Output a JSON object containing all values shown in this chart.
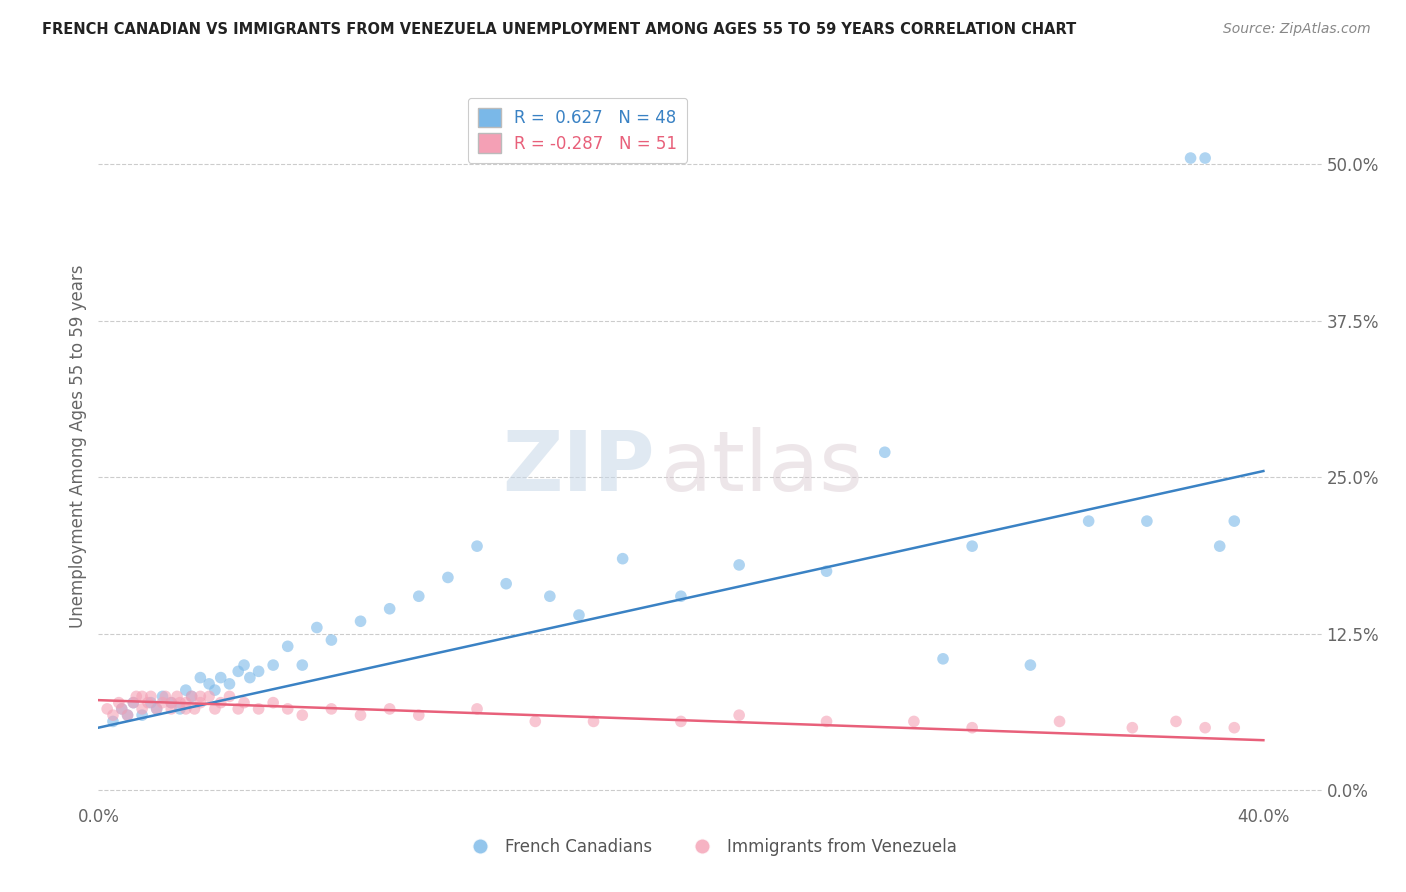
{
  "title": "FRENCH CANADIAN VS IMMIGRANTS FROM VENEZUELA UNEMPLOYMENT AMONG AGES 55 TO 59 YEARS CORRELATION CHART",
  "source": "Source: ZipAtlas.com",
  "ylabel": "Unemployment Among Ages 55 to 59 years",
  "xlabel": "",
  "background_color": "#ffffff",
  "watermark_zip": "ZIP",
  "watermark_atlas": "atlas",
  "blue_R": 0.627,
  "blue_N": 48,
  "pink_R": -0.287,
  "pink_N": 51,
  "blue_color": "#7ab8e8",
  "pink_color": "#f4a0b5",
  "blue_line_color": "#3a82c4",
  "pink_line_color": "#e8607a",
  "xlim": [
    0.0,
    0.42
  ],
  "ylim": [
    -0.01,
    0.56
  ],
  "yticks": [
    0.0,
    0.125,
    0.25,
    0.375,
    0.5
  ],
  "ytick_labels": [
    "0.0%",
    "12.5%",
    "25.0%",
    "37.5%",
    "50.0%"
  ],
  "xticks": [
    0.0,
    0.4
  ],
  "xtick_labels": [
    "0.0%",
    "40.0%"
  ],
  "legend_labels": [
    "French Canadians",
    "Immigrants from Venezuela"
  ],
  "blue_scatter_x": [
    0.005,
    0.008,
    0.01,
    0.012,
    0.015,
    0.018,
    0.02,
    0.022,
    0.025,
    0.028,
    0.03,
    0.032,
    0.035,
    0.038,
    0.04,
    0.042,
    0.045,
    0.048,
    0.05,
    0.052,
    0.055,
    0.06,
    0.065,
    0.07,
    0.075,
    0.08,
    0.09,
    0.1,
    0.11,
    0.12,
    0.13,
    0.14,
    0.155,
    0.165,
    0.18,
    0.2,
    0.22,
    0.25,
    0.27,
    0.29,
    0.3,
    0.32,
    0.34,
    0.36,
    0.375,
    0.38,
    0.385,
    0.39
  ],
  "blue_scatter_y": [
    0.055,
    0.065,
    0.06,
    0.07,
    0.06,
    0.07,
    0.065,
    0.075,
    0.07,
    0.065,
    0.08,
    0.075,
    0.09,
    0.085,
    0.08,
    0.09,
    0.085,
    0.095,
    0.1,
    0.09,
    0.095,
    0.1,
    0.115,
    0.1,
    0.13,
    0.12,
    0.135,
    0.145,
    0.155,
    0.17,
    0.195,
    0.165,
    0.155,
    0.14,
    0.185,
    0.155,
    0.18,
    0.175,
    0.27,
    0.105,
    0.195,
    0.1,
    0.215,
    0.215,
    0.505,
    0.505,
    0.195,
    0.215
  ],
  "pink_scatter_x": [
    0.003,
    0.005,
    0.007,
    0.008,
    0.01,
    0.012,
    0.013,
    0.015,
    0.015,
    0.017,
    0.018,
    0.02,
    0.022,
    0.023,
    0.025,
    0.025,
    0.027,
    0.028,
    0.03,
    0.03,
    0.032,
    0.033,
    0.035,
    0.035,
    0.038,
    0.04,
    0.042,
    0.045,
    0.048,
    0.05,
    0.055,
    0.06,
    0.065,
    0.07,
    0.08,
    0.09,
    0.1,
    0.11,
    0.13,
    0.15,
    0.17,
    0.2,
    0.22,
    0.25,
    0.28,
    0.3,
    0.33,
    0.355,
    0.37,
    0.38,
    0.39
  ],
  "pink_scatter_y": [
    0.065,
    0.06,
    0.07,
    0.065,
    0.06,
    0.07,
    0.075,
    0.065,
    0.075,
    0.07,
    0.075,
    0.065,
    0.07,
    0.075,
    0.07,
    0.065,
    0.075,
    0.07,
    0.065,
    0.07,
    0.075,
    0.065,
    0.075,
    0.07,
    0.075,
    0.065,
    0.07,
    0.075,
    0.065,
    0.07,
    0.065,
    0.07,
    0.065,
    0.06,
    0.065,
    0.06,
    0.065,
    0.06,
    0.065,
    0.055,
    0.055,
    0.055,
    0.06,
    0.055,
    0.055,
    0.05,
    0.055,
    0.05,
    0.055,
    0.05,
    0.05
  ],
  "blue_line_x0": 0.0,
  "blue_line_x1": 0.4,
  "blue_line_y0": 0.05,
  "blue_line_y1": 0.255,
  "pink_line_x0": 0.0,
  "pink_line_x1": 0.4,
  "pink_line_y0": 0.072,
  "pink_line_y1": 0.04
}
